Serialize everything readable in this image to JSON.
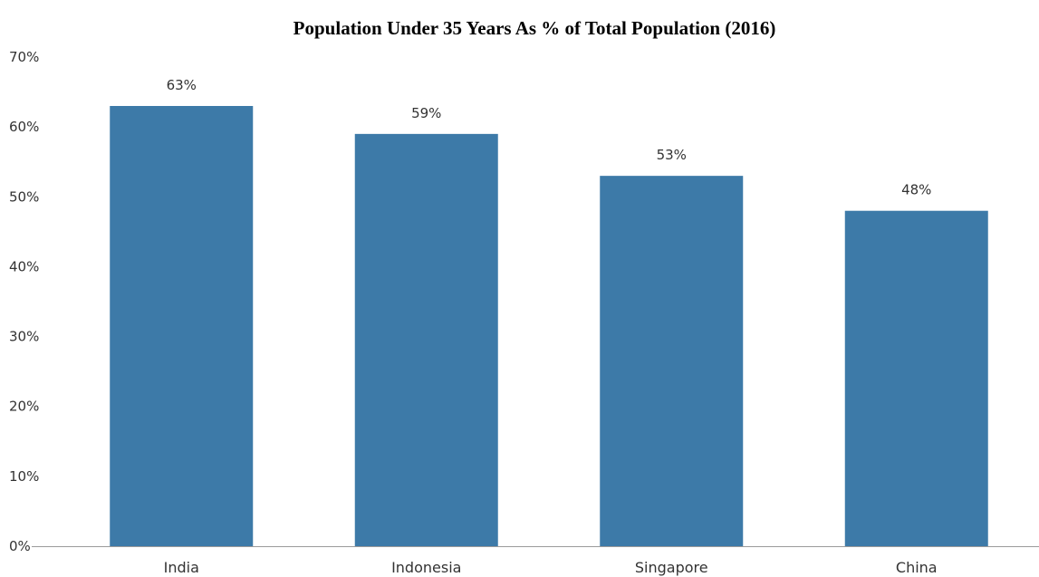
{
  "chart_data": {
    "type": "bar",
    "title": "Population Under 35 Years As % of Total Population (2016)",
    "categories": [
      "India",
      "Indonesia",
      "Singapore",
      "China"
    ],
    "values": [
      63,
      59,
      53,
      48
    ],
    "data_labels": [
      "63%",
      "59%",
      "53%",
      "48%"
    ],
    "y_ticks": [
      "0%",
      "10%",
      "20%",
      "30%",
      "40%",
      "50%",
      "60%",
      "70%"
    ],
    "ylim": [
      0,
      70
    ],
    "xlabel": "",
    "ylabel": "",
    "grid": false,
    "legend": "none",
    "bar_color": "#3d7aa8"
  }
}
